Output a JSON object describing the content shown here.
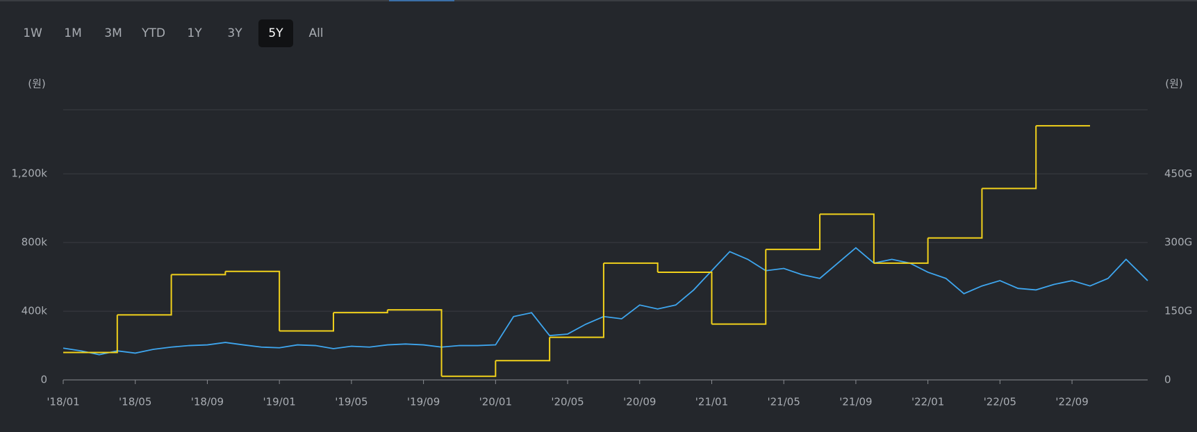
{
  "range_buttons": [
    "1W",
    "1M",
    "3M",
    "YTD",
    "1Y",
    "3Y",
    "5Y",
    "All"
  ],
  "selected_range": 6,
  "chart_data": {
    "type": "line",
    "y_unit": "(원)",
    "y2_unit": "(원)",
    "xlim": [
      0,
      60.2
    ],
    "xticks": [
      {
        "value": 0,
        "label": "'18/01"
      },
      {
        "value": 4,
        "label": "'18/05"
      },
      {
        "value": 8,
        "label": "'18/09"
      },
      {
        "value": 12,
        "label": "'19/01"
      },
      {
        "value": 16,
        "label": "'19/05"
      },
      {
        "value": 20,
        "label": "'19/09"
      },
      {
        "value": 24,
        "label": "'20/01"
      },
      {
        "value": 28,
        "label": "'20/05"
      },
      {
        "value": 32,
        "label": "'20/09"
      },
      {
        "value": 36,
        "label": "'21/01"
      },
      {
        "value": 40,
        "label": "'21/05"
      },
      {
        "value": 44,
        "label": "'21/09"
      },
      {
        "value": 48,
        "label": "'22/01"
      },
      {
        "value": 52,
        "label": "'22/05"
      },
      {
        "value": 56,
        "label": "'22/09"
      }
    ],
    "ylim": [
      0,
      1573
    ],
    "yticks": [
      0,
      {
        "value": 400,
        "label": "400k"
      },
      {
        "value": 800,
        "label": "800k"
      },
      {
        "value": 1200,
        "label": "1,200k"
      }
    ],
    "y2lim": [
      0,
      590
    ],
    "y2ticks": [
      0,
      {
        "value": 150,
        "label": "150G"
      },
      {
        "value": 300,
        "label": "300G"
      },
      {
        "value": 450,
        "label": "450G"
      }
    ],
    "grid": true,
    "series": [
      {
        "color": "#3ea6ef",
        "x": [
          0,
          1,
          2,
          3,
          4,
          5,
          6,
          7,
          8,
          9,
          10,
          11,
          12,
          13,
          14,
          15,
          16,
          17,
          18,
          19,
          20,
          21,
          22,
          23,
          24,
          25,
          26,
          27,
          28,
          29,
          30,
          31,
          32,
          33,
          34,
          35,
          36,
          37,
          38,
          39,
          40,
          41,
          42,
          43,
          44,
          45,
          46,
          47,
          48,
          49,
          50,
          51,
          52,
          53,
          54,
          55,
          56,
          57,
          58,
          59,
          60.2
        ],
        "values": [
          185,
          169,
          147,
          169,
          156,
          178,
          191,
          200,
          204,
          218,
          204,
          191,
          187,
          204,
          200,
          182,
          196,
          191,
          204,
          209,
          204,
          191,
          200,
          200,
          204,
          369,
          391,
          258,
          267,
          324,
          369,
          356,
          436,
          413,
          436,
          524,
          636,
          747,
          702,
          636,
          649,
          613,
          591,
          680,
          769,
          680,
          702,
          680,
          627,
          591,
          502,
          547,
          578,
          533,
          524,
          556,
          578,
          547,
          591,
          702,
          578
        ]
      },
      {
        "color": "#f2d21b",
        "axis": "y2",
        "step": "post",
        "x": [
          0,
          3,
          6,
          9,
          12,
          15,
          18,
          21,
          24,
          27,
          30,
          33,
          36,
          39,
          42,
          45,
          48,
          51,
          54,
          57
        ],
        "values": [
          60,
          142,
          230,
          237,
          107,
          147,
          153,
          8,
          42,
          93,
          255,
          235,
          122,
          285,
          362,
          255,
          310,
          418,
          555,
          555
        ]
      }
    ]
  }
}
